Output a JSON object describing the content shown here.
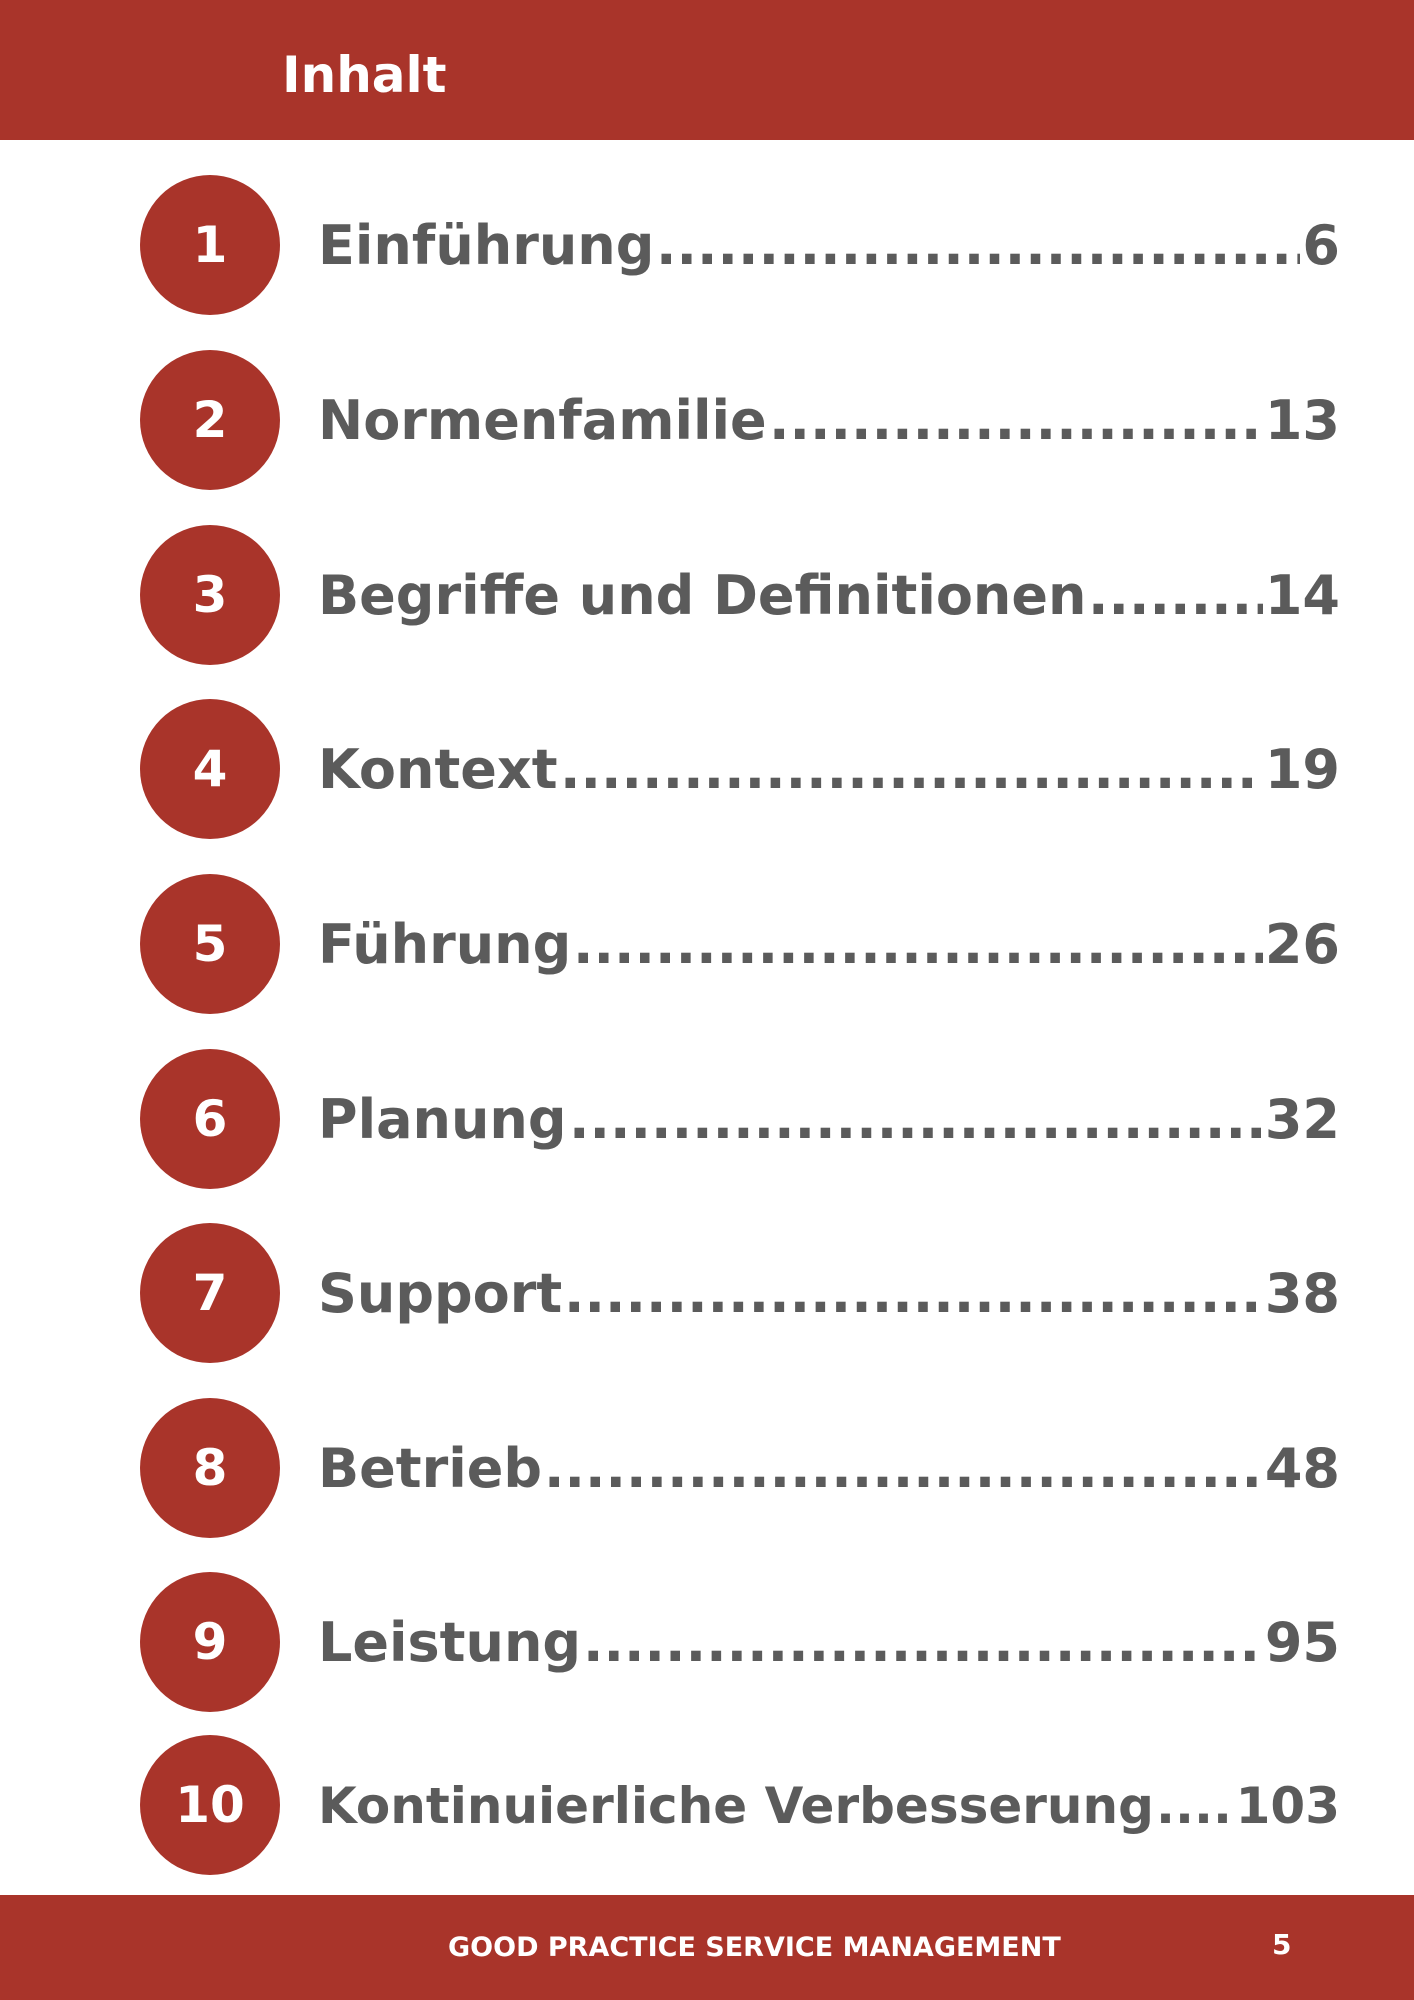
{
  "header": {
    "title": "Inhalt"
  },
  "toc": [
    {
      "number": "1",
      "title": "Einführung",
      "page": "6"
    },
    {
      "number": "2",
      "title": "Normenfamilie",
      "page": "13"
    },
    {
      "number": "3",
      "title": "Begriffe und Definitionen",
      "page": "14"
    },
    {
      "number": "4",
      "title": "Kontext",
      "page": "19"
    },
    {
      "number": "5",
      "title": "Führung",
      "page": "26"
    },
    {
      "number": "6",
      "title": "Planung",
      "page": "32"
    },
    {
      "number": "7",
      "title": "Support",
      "page": "38"
    },
    {
      "number": "8",
      "title": "Betrieb",
      "page": "48"
    },
    {
      "number": "9",
      "title": "Leistung",
      "page": "95"
    },
    {
      "number": "10",
      "title": "Kontinuierliche Verbesserung",
      "page": "103"
    }
  ],
  "footer": {
    "title": "GOOD PRACTICE SERVICE MANAGEMENT",
    "page_number": "5"
  },
  "colors": {
    "accent": "#a9342a",
    "text": "#5b5b5b",
    "background": "#ffffff"
  }
}
